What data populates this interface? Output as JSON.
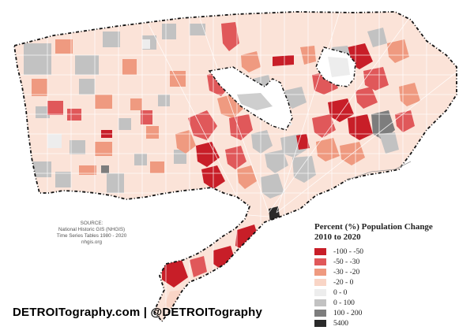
{
  "source": {
    "lines": [
      "SOURCE:",
      "National Historic GIS (NHGIS)",
      "Time Series Tables 1980 - 2020",
      "nhgis.org"
    ]
  },
  "legend": {
    "title_line1": "Percent (%) Population Change",
    "title_line2": "2010 to 2020",
    "items": [
      {
        "label": "-100 - -50",
        "color": "#c81e28"
      },
      {
        "label": "-50 - -30",
        "color": "#e0585a"
      },
      {
        "label": "-30 - -20",
        "color": "#ef9a80"
      },
      {
        "label": "-20 - 0",
        "color": "#f9d5c6"
      },
      {
        "label": "0 - 0",
        "color": "#ededed"
      },
      {
        "label": "0 - 100",
        "color": "#c2c2c2"
      },
      {
        "label": "100 - 200",
        "color": "#7d7d7d"
      },
      {
        "label": "5400",
        "color": "#2a2a2a"
      }
    ]
  },
  "footer": {
    "text": "DETROITography.com | @DETROITography"
  }
}
